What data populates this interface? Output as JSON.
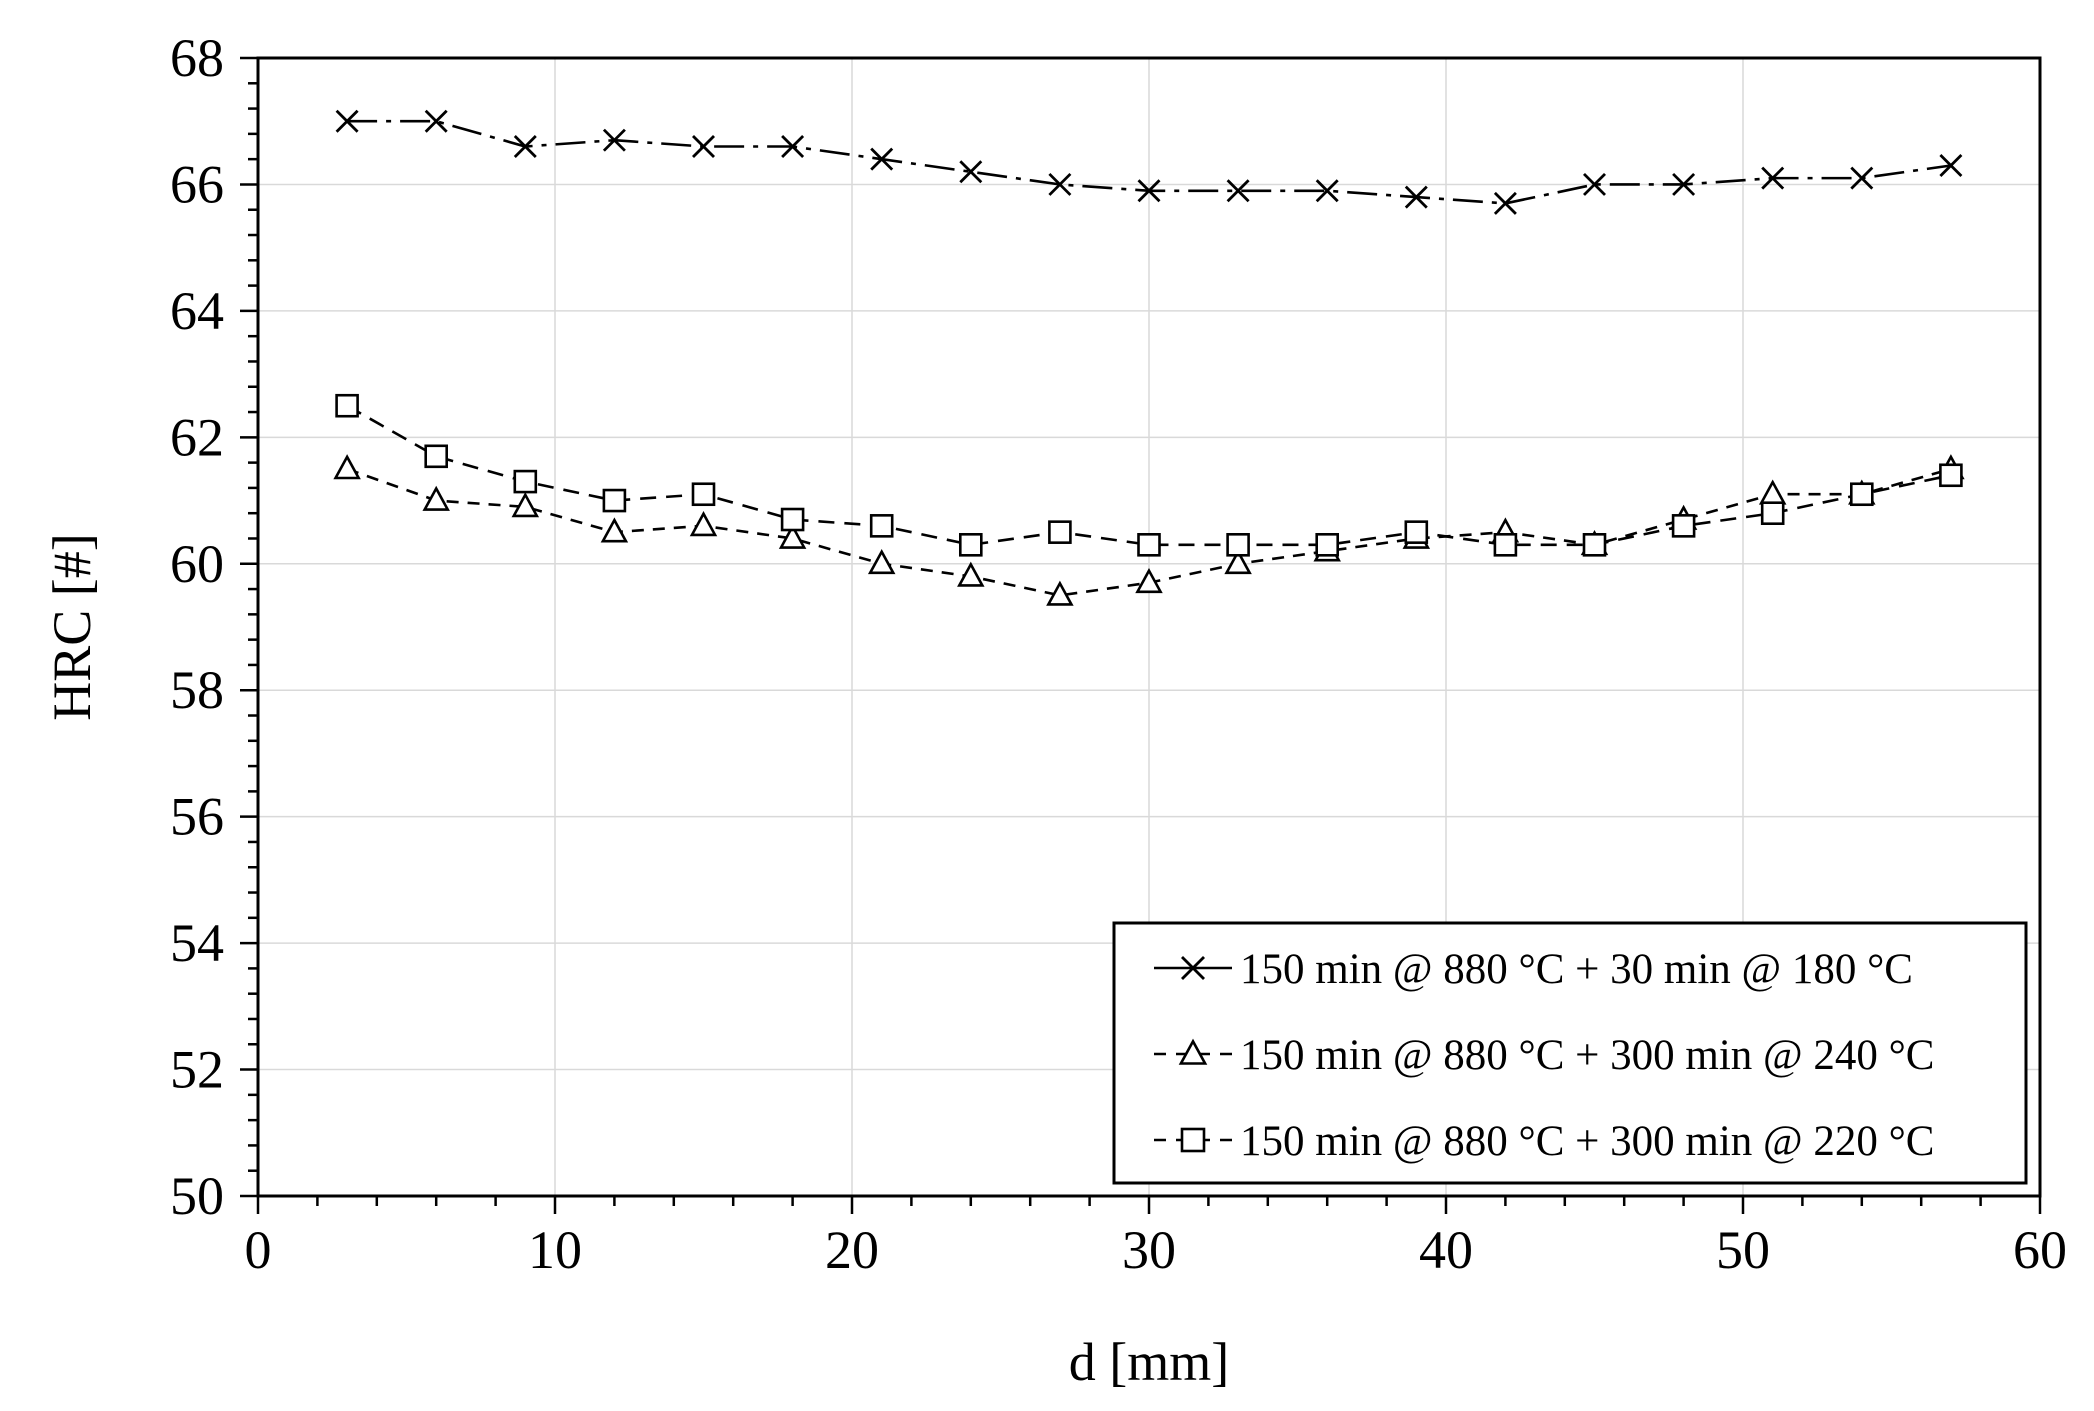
{
  "chart_data": {
    "type": "line",
    "xlabel": "d [mm]",
    "ylabel": "HRC [#]",
    "xlim": [
      0,
      60
    ],
    "ylim": [
      50,
      68
    ],
    "xticks": [
      0,
      10,
      20,
      30,
      40,
      50,
      60
    ],
    "yticks": [
      50,
      52,
      54,
      56,
      58,
      60,
      62,
      64,
      66,
      68
    ],
    "x_minor_step": 2,
    "y_minor_step": 0.4,
    "grid": true,
    "legend_position": "bottom-right",
    "series": [
      {
        "name": "150 min @ 880 °C + 30 min @ 180 °C",
        "marker": "x",
        "dash": "long-dash-dot",
        "x": [
          3,
          6,
          9,
          12,
          15,
          18,
          21,
          24,
          27,
          30,
          33,
          36,
          39,
          42,
          45,
          48,
          51,
          54,
          57
        ],
        "values": [
          67.0,
          67.0,
          66.6,
          66.7,
          66.6,
          66.6,
          66.4,
          66.2,
          66.0,
          65.9,
          65.9,
          65.9,
          65.8,
          65.7,
          66.0,
          66.0,
          66.1,
          66.1,
          66.3
        ]
      },
      {
        "name": "150 min @ 880 °C + 300 min @ 240 °C",
        "marker": "triangle",
        "dash": "short-dash",
        "x": [
          3,
          6,
          9,
          12,
          15,
          18,
          21,
          24,
          27,
          30,
          33,
          36,
          39,
          42,
          45,
          48,
          51,
          54,
          57
        ],
        "values": [
          61.5,
          61.0,
          60.9,
          60.5,
          60.6,
          60.4,
          60.0,
          59.8,
          59.5,
          59.7,
          60.0,
          60.2,
          60.4,
          60.5,
          60.3,
          60.7,
          61.1,
          61.1,
          61.5
        ]
      },
      {
        "name": "150 min @ 880 °C + 300 min @ 220 °C",
        "marker": "square",
        "dash": "medium-dash",
        "x": [
          3,
          6,
          9,
          12,
          15,
          18,
          21,
          24,
          27,
          30,
          33,
          36,
          39,
          42,
          45,
          48,
          51,
          54,
          57
        ],
        "values": [
          62.5,
          61.7,
          61.3,
          61.0,
          61.1,
          60.7,
          60.6,
          60.3,
          60.5,
          60.3,
          60.3,
          60.3,
          60.5,
          60.3,
          60.3,
          60.6,
          60.8,
          61.1,
          61.4
        ]
      }
    ]
  }
}
